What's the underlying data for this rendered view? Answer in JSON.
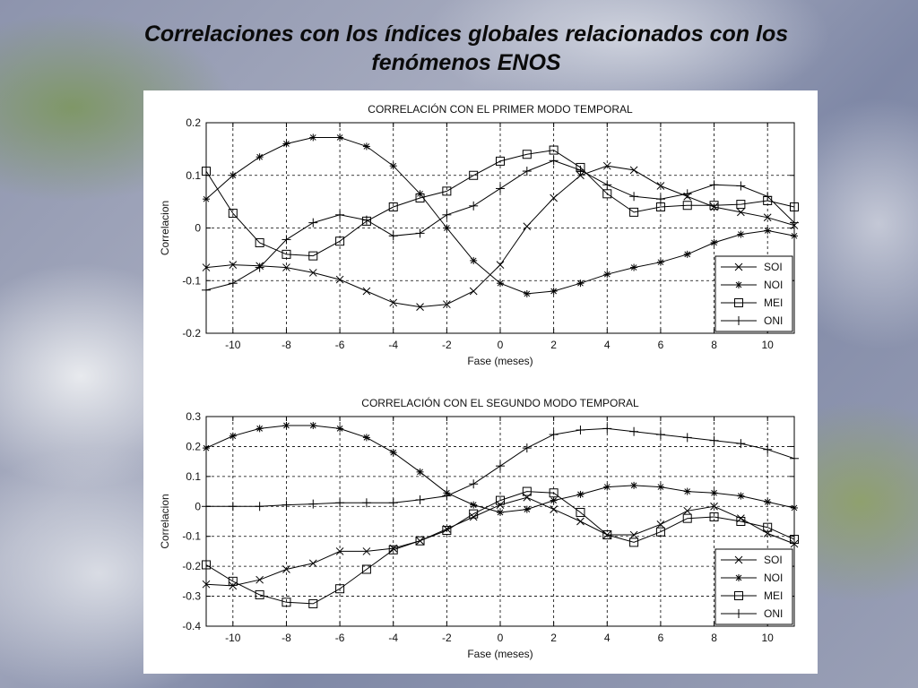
{
  "slide": {
    "title_line1": "Correlaciones con los índices globales relacionados con los",
    "title_line2": "fenómenos ENOS"
  },
  "chart_data": [
    {
      "type": "line",
      "title": "CORRELACIÓN CON EL PRIMER MODO TEMPORAL",
      "xlabel": "Fase (meses)",
      "ylabel": "Correlacion",
      "xlim": [
        -11,
        11
      ],
      "ylim": [
        -0.2,
        0.2
      ],
      "xticks": [
        -10,
        -8,
        -6,
        -4,
        -2,
        0,
        2,
        4,
        6,
        8,
        10
      ],
      "yticks": [
        -0.2,
        -0.1,
        0,
        0.1,
        0.2
      ],
      "ytick_labels": [
        "-0.2",
        "-0.1",
        "0",
        "0.1",
        "0.2"
      ],
      "grid": true,
      "legend_position": "lower-right",
      "x": [
        -11,
        -10,
        -9,
        -8,
        -7,
        -6,
        -5,
        -4,
        -3,
        -2,
        -1,
        0,
        1,
        2,
        3,
        4,
        5,
        6,
        7,
        8,
        9,
        10,
        11
      ],
      "series": [
        {
          "name": "SOI",
          "marker": "x",
          "values": [
            -0.075,
            -0.07,
            -0.072,
            -0.075,
            -0.085,
            -0.098,
            -0.12,
            -0.142,
            -0.15,
            -0.145,
            -0.12,
            -0.07,
            0.003,
            0.057,
            0.1,
            0.118,
            0.11,
            0.08,
            0.06,
            0.04,
            0.03,
            0.02,
            0.005
          ]
        },
        {
          "name": "NOI",
          "marker": "asterisk",
          "values": [
            0.055,
            0.1,
            0.135,
            0.16,
            0.172,
            0.172,
            0.155,
            0.118,
            0.065,
            0,
            -0.062,
            -0.105,
            -0.125,
            -0.12,
            -0.105,
            -0.088,
            -0.075,
            -0.065,
            -0.05,
            -0.028,
            -0.012,
            -0.005,
            -0.015
          ]
        },
        {
          "name": "MEI",
          "marker": "square",
          "values": [
            0.108,
            0.028,
            -0.028,
            -0.05,
            -0.053,
            -0.025,
            0.013,
            0.04,
            0.057,
            0.07,
            0.1,
            0.127,
            0.14,
            0.148,
            0.115,
            0.065,
            0.03,
            0.04,
            0.043,
            0.043,
            0.045,
            0.052,
            0.04
          ]
        },
        {
          "name": "ONI",
          "marker": "plus",
          "values": [
            -0.118,
            -0.105,
            -0.075,
            -0.022,
            0.01,
            0.025,
            0.015,
            -0.015,
            -0.01,
            0.025,
            0.042,
            0.075,
            0.108,
            0.128,
            0.11,
            0.082,
            0.06,
            0.055,
            0.065,
            0.082,
            0.08,
            0.06,
            0.01
          ]
        }
      ]
    },
    {
      "type": "line",
      "title": "CORRELACIÓN CON EL SEGUNDO MODO TEMPORAL",
      "xlabel": "Fase (meses)",
      "ylabel": "Correlacion",
      "xlim": [
        -11,
        11
      ],
      "ylim": [
        -0.4,
        0.3
      ],
      "xticks": [
        -10,
        -8,
        -6,
        -4,
        -2,
        0,
        2,
        4,
        6,
        8,
        10
      ],
      "yticks": [
        -0.4,
        -0.3,
        -0.2,
        -0.1,
        0,
        0.1,
        0.2,
        0.3
      ],
      "ytick_labels": [
        "-0.4",
        "-0.3",
        "-0.2",
        "-0.1",
        "0",
        "0.1",
        "0.2",
        "0.3"
      ],
      "grid": true,
      "legend_position": "lower-right",
      "x": [
        -11,
        -10,
        -9,
        -8,
        -7,
        -6,
        -5,
        -4,
        -3,
        -2,
        -1,
        0,
        1,
        2,
        3,
        4,
        5,
        6,
        7,
        8,
        9,
        10,
        11
      ],
      "series": [
        {
          "name": "SOI",
          "marker": "x",
          "values": [
            -0.26,
            -0.265,
            -0.245,
            -0.21,
            -0.19,
            -0.15,
            -0.15,
            -0.14,
            -0.115,
            -0.075,
            -0.035,
            0.005,
            0.03,
            -0.01,
            -0.05,
            -0.095,
            -0.095,
            -0.06,
            -0.015,
            0,
            -0.04,
            -0.09,
            -0.125
          ]
        },
        {
          "name": "NOI",
          "marker": "asterisk",
          "values": [
            0.195,
            0.235,
            0.26,
            0.27,
            0.27,
            0.26,
            0.23,
            0.18,
            0.115,
            0.045,
            0.005,
            -0.02,
            -0.01,
            0.02,
            0.04,
            0.065,
            0.07,
            0.065,
            0.05,
            0.045,
            0.035,
            0.015,
            -0.005
          ]
        },
        {
          "name": "MEI",
          "marker": "square",
          "values": [
            -0.195,
            -0.25,
            -0.295,
            -0.32,
            -0.325,
            -0.275,
            -0.21,
            -0.145,
            -0.115,
            -0.08,
            -0.025,
            0.02,
            0.05,
            0.045,
            -0.02,
            -0.095,
            -0.12,
            -0.085,
            -0.04,
            -0.035,
            -0.05,
            -0.07,
            -0.11
          ]
        },
        {
          "name": "ONI",
          "marker": "plus",
          "values": [
            0,
            0,
            0,
            0.005,
            0.008,
            0.012,
            0.012,
            0.012,
            0.022,
            0.035,
            0.075,
            0.135,
            0.195,
            0.24,
            0.255,
            0.26,
            0.25,
            0.24,
            0.23,
            0.22,
            0.21,
            0.19,
            0.16
          ]
        }
      ]
    }
  ]
}
